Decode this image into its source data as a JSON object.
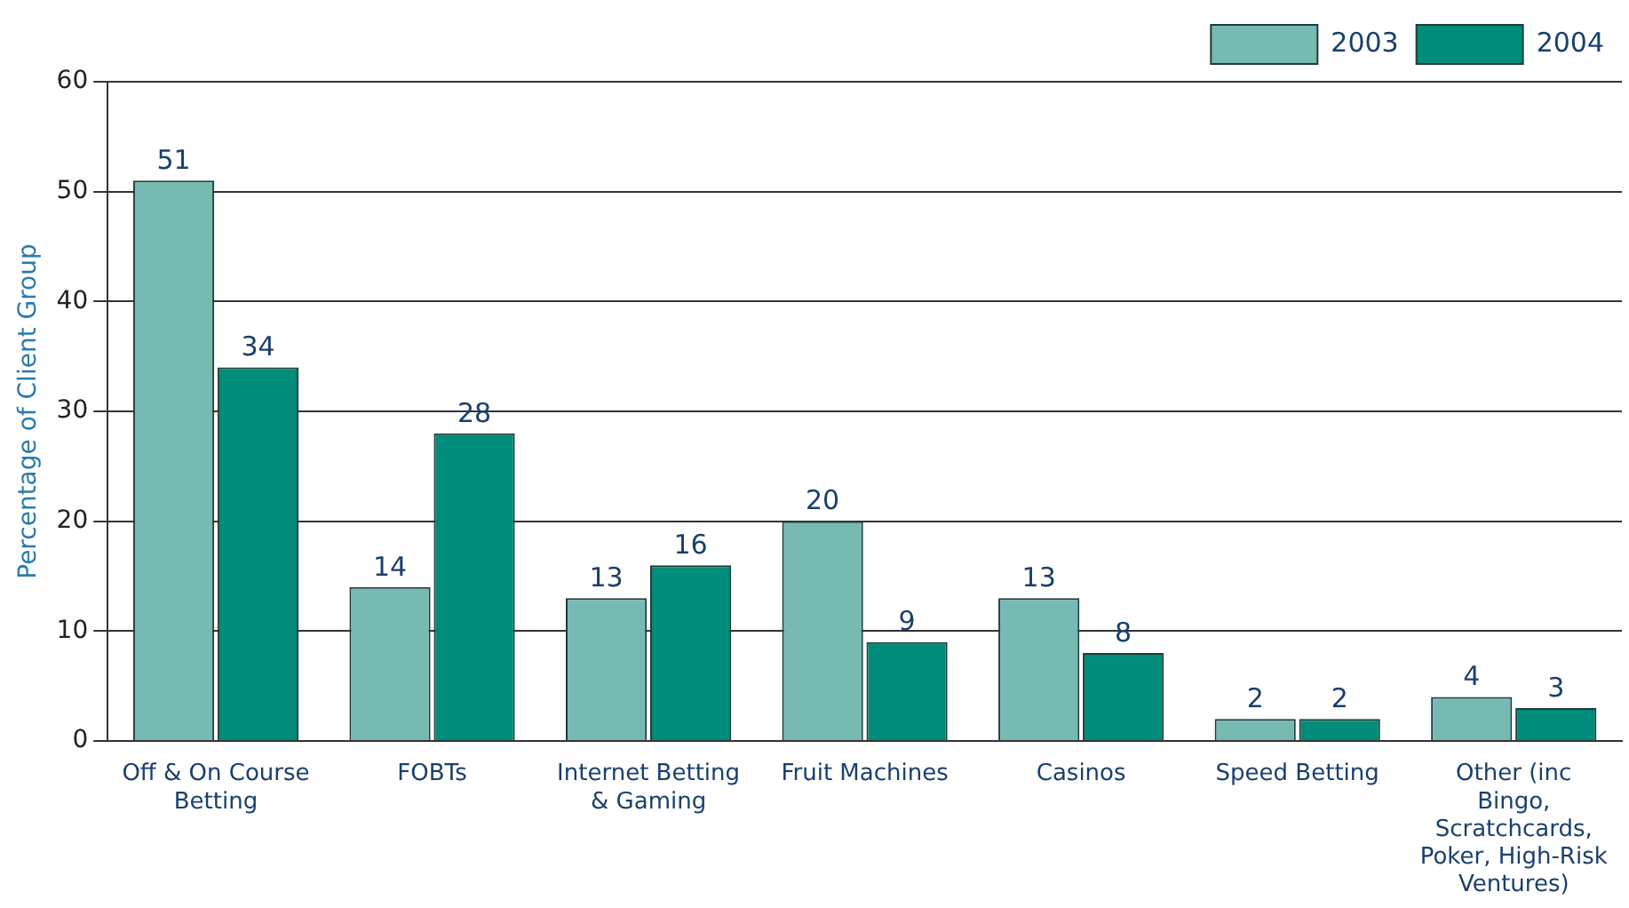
{
  "chart_data": {
    "type": "bar",
    "ylabel": "Percentage of Client Group",
    "categories": [
      "Off & On Course Betting",
      "FOBTs",
      "Internet Betting & Gaming",
      "Fruit Machines",
      "Casinos",
      "Speed Betting",
      "Other (inc Bingo, Scratchcards, Poker, High-Risk Ventures)"
    ],
    "series": [
      {
        "name": "2003",
        "color": "#76bab1",
        "values": [
          51,
          14,
          13,
          20,
          13,
          2,
          4
        ]
      },
      {
        "name": "2004",
        "color": "#008c7a",
        "values": [
          34,
          28,
          16,
          9,
          8,
          2,
          3
        ]
      }
    ],
    "ylim": [
      0,
      60
    ],
    "yticks": [
      0,
      10,
      20,
      30,
      40,
      50,
      60
    ],
    "grid": "y",
    "legend": "top right",
    "data_labels": true
  }
}
